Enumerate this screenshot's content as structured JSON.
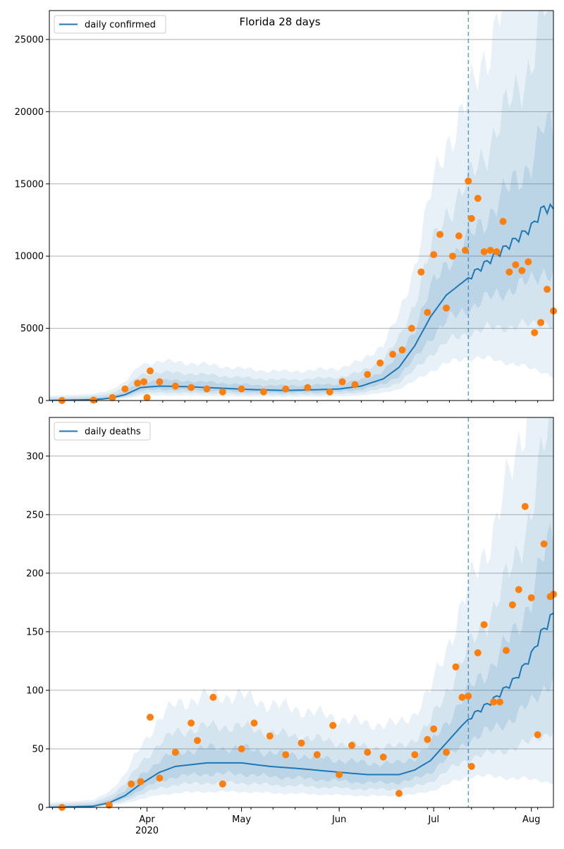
{
  "figure": {
    "suptitle": "Florida 28 days"
  },
  "colors": {
    "line": "#1f77b4",
    "points": "#ff7f0e",
    "band": "#1f77b4",
    "grid": "#b0b0b0",
    "axis": "#000000"
  },
  "chart_data": [
    {
      "type": "line",
      "title": "Florida 28 days",
      "legend": {
        "label": "daily confirmed",
        "placement": "top-left"
      },
      "xlabel": "",
      "ylabel": "",
      "xlim": [
        "2020-03-01",
        "2020-08-08"
      ],
      "ylim": [
        0,
        27000
      ],
      "yticks": [
        0,
        5000,
        10000,
        15000,
        20000,
        25000
      ],
      "xtick_labels": [],
      "grid": "y",
      "forecast_start": "2020-07-12",
      "bands": "shaded prediction intervals around the model line (three nested levels)",
      "model": {
        "name": "daily confirmed",
        "x": [
          "2020-03-01",
          "2020-03-15",
          "2020-03-20",
          "2020-03-25",
          "2020-03-30",
          "2020-04-05",
          "2020-04-15",
          "2020-04-25",
          "2020-05-05",
          "2020-05-15",
          "2020-05-25",
          "2020-06-01",
          "2020-06-08",
          "2020-06-15",
          "2020-06-20",
          "2020-06-25",
          "2020-06-30",
          "2020-07-05",
          "2020-07-12",
          "2020-07-18",
          "2020-07-25",
          "2020-08-01",
          "2020-08-05",
          "2020-08-08"
        ],
        "y": [
          0,
          60,
          150,
          400,
          900,
          1000,
          950,
          850,
          750,
          700,
          750,
          800,
          1000,
          1500,
          2300,
          3800,
          5800,
          7300,
          8500,
          9600,
          10800,
          12000,
          13400,
          13200
        ]
      },
      "observed": {
        "name": "observed",
        "x": [
          "2020-03-05",
          "2020-03-15",
          "2020-03-21",
          "2020-03-25",
          "2020-03-29",
          "2020-03-31",
          "2020-04-01",
          "2020-04-02",
          "2020-04-05",
          "2020-04-10",
          "2020-04-15",
          "2020-04-20",
          "2020-04-25",
          "2020-05-01",
          "2020-05-08",
          "2020-05-15",
          "2020-05-22",
          "2020-05-29",
          "2020-06-02",
          "2020-06-06",
          "2020-06-10",
          "2020-06-14",
          "2020-06-18",
          "2020-06-21",
          "2020-06-24",
          "2020-06-27",
          "2020-06-29",
          "2020-07-01",
          "2020-07-03",
          "2020-07-05",
          "2020-07-07",
          "2020-07-09",
          "2020-07-11",
          "2020-07-12",
          "2020-07-13",
          "2020-07-15",
          "2020-07-17",
          "2020-07-19",
          "2020-07-21",
          "2020-07-23",
          "2020-07-25",
          "2020-07-27",
          "2020-07-29",
          "2020-07-31",
          "2020-08-02",
          "2020-08-04",
          "2020-08-06",
          "2020-08-08"
        ],
        "y": [
          0,
          30,
          200,
          800,
          1200,
          1300,
          200,
          2050,
          1300,
          1000,
          900,
          800,
          600,
          800,
          600,
          800,
          900,
          600,
          1300,
          1100,
          1800,
          2600,
          3200,
          3500,
          5000,
          8900,
          6100,
          10100,
          11500,
          6400,
          10000,
          11400,
          10400,
          15200,
          12600,
          14000,
          10300,
          10400,
          10300,
          12400,
          8900,
          9400,
          9000,
          9600,
          4700,
          5400,
          7700,
          6200
        ]
      }
    },
    {
      "type": "line",
      "title": "",
      "legend": {
        "label": "daily deaths",
        "placement": "top-left"
      },
      "xlabel": "",
      "ylabel": "",
      "xlim": [
        "2020-03-01",
        "2020-08-08"
      ],
      "ylim": [
        0,
        333
      ],
      "yticks": [
        0,
        50,
        100,
        150,
        200,
        250,
        300
      ],
      "xtick_labels": [
        "Apr\n2020",
        "May",
        "Jun",
        "Jul",
        "Aug"
      ],
      "xtick_positions": [
        "2020-04-01",
        "2020-05-01",
        "2020-06-01",
        "2020-07-01",
        "2020-08-01"
      ],
      "grid": "y",
      "forecast_start": "2020-07-12",
      "bands": "shaded prediction intervals around the model line (three nested levels)",
      "model": {
        "name": "daily deaths",
        "x": [
          "2020-03-01",
          "2020-03-15",
          "2020-03-20",
          "2020-03-25",
          "2020-03-30",
          "2020-04-05",
          "2020-04-10",
          "2020-04-20",
          "2020-05-01",
          "2020-05-10",
          "2020-05-20",
          "2020-06-01",
          "2020-06-10",
          "2020-06-20",
          "2020-06-25",
          "2020-06-30",
          "2020-07-05",
          "2020-07-10",
          "2020-07-13",
          "2020-07-20",
          "2020-07-27",
          "2020-08-01",
          "2020-08-04",
          "2020-08-08"
        ],
        "y": [
          0,
          1,
          4,
          10,
          20,
          30,
          35,
          38,
          38,
          35,
          33,
          30,
          28,
          28,
          32,
          40,
          55,
          70,
          78,
          92,
          110,
          130,
          148,
          165
        ]
      },
      "observed": {
        "name": "observed",
        "x": [
          "2020-03-05",
          "2020-03-20",
          "2020-03-27",
          "2020-03-30",
          "2020-04-02",
          "2020-04-05",
          "2020-04-10",
          "2020-04-15",
          "2020-04-17",
          "2020-04-22",
          "2020-04-25",
          "2020-05-01",
          "2020-05-05",
          "2020-05-10",
          "2020-05-15",
          "2020-05-20",
          "2020-05-25",
          "2020-05-30",
          "2020-06-01",
          "2020-06-05",
          "2020-06-10",
          "2020-06-15",
          "2020-06-20",
          "2020-06-25",
          "2020-06-29",
          "2020-07-01",
          "2020-07-05",
          "2020-07-08",
          "2020-07-10",
          "2020-07-12",
          "2020-07-13",
          "2020-07-15",
          "2020-07-17",
          "2020-07-20",
          "2020-07-22",
          "2020-07-24",
          "2020-07-26",
          "2020-07-28",
          "2020-07-30",
          "2020-08-01",
          "2020-08-03",
          "2020-08-05",
          "2020-08-07",
          "2020-08-08"
        ],
        "y": [
          0,
          2,
          20,
          22,
          77,
          25,
          47,
          72,
          57,
          94,
          20,
          50,
          72,
          61,
          45,
          55,
          45,
          70,
          28,
          53,
          47,
          43,
          12,
          45,
          58,
          67,
          47,
          120,
          94,
          95,
          35,
          132,
          156,
          90,
          90,
          134,
          173,
          186,
          257,
          179,
          62,
          225,
          180,
          182
        ]
      }
    }
  ]
}
